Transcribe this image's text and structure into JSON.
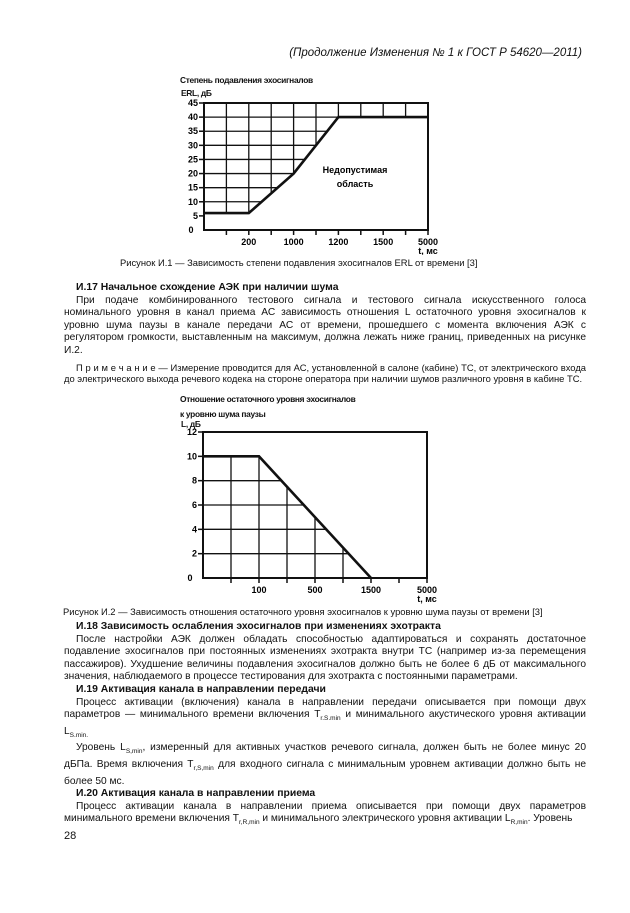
{
  "header": "(Продолжение Изменения № 1 к ГОСТ Р 54620—2011)",
  "chart_data": [
    {
      "type": "line",
      "title": "Степень подавления эхосигналов",
      "ylabel": "ERL, дБ",
      "xlabel": "t, мс",
      "x_ticks": [
        "",
        "",
        "200",
        "",
        "1000",
        "",
        "1200",
        "",
        "1500",
        "",
        "5000"
      ],
      "y_ticks": [
        0,
        5,
        10,
        15,
        20,
        25,
        30,
        35,
        40,
        45
      ],
      "ylim": [
        0,
        45
      ],
      "x_positions": [
        0,
        100,
        200,
        600,
        1000,
        1100,
        1200,
        1350,
        1500,
        3250,
        5000
      ],
      "points": [
        [
          0,
          6
        ],
        [
          200,
          6
        ],
        [
          1000,
          20
        ],
        [
          1200,
          40
        ],
        [
          5000,
          40
        ]
      ],
      "annotation": [
        "Недопустимая",
        "область"
      ],
      "grid": true,
      "zero_label": "0"
    },
    {
      "type": "line",
      "title": "Отношение остаточного уровня эхосигналов",
      "title2": "к уровню шума паузы",
      "ylabel": "L, дБ",
      "xlabel": "t, мс",
      "x_ticks": [
        "",
        "",
        "100",
        "",
        "500",
        "",
        "1500",
        "",
        "5000"
      ],
      "y_ticks": [
        0,
        2,
        4,
        6,
        8,
        10,
        12
      ],
      "ylim": [
        0,
        12
      ],
      "x_positions": [
        0,
        50,
        100,
        300,
        500,
        1000,
        1500,
        3250,
        5000
      ],
      "points": [
        [
          0,
          10
        ],
        [
          100,
          10
        ],
        [
          1500,
          0
        ]
      ],
      "grid": true,
      "zero_label": "0"
    }
  ],
  "caption1": "Рисунок И.1 — Зависимость степени подавления эхосигналов ERL от времени [3]",
  "s17_title": "И.17 Начальное схождение АЭК при наличии шума",
  "s17_text": "При подаче комбинированного тестового сигнала и тестового сигнала искусственного голоса номинального уровня в канал приема АС зависимость отношения L остаточного уровня эхосигналов к уровню шума паузы в канале передачи АС от времени, прошедшего с момента включения АЭК с регулятором громкости, выставленным на максимум, должна лежать ниже границ, приведенных на рисунке И.2.",
  "s17_note": "П р и м е ч а н и е — Измерение проводится для АС, установленной в салоне (кабине) ТС, от электрического входа до электрического выхода речевого кодека на стороне оператора при наличии шумов различного уровня в кабине ТС.",
  "caption2": "Рисунок И.2 — Зависимость отношения остаточного уровня эхосигналов к уровню шума паузы от времени [3]",
  "s18_title": "И.18 Зависимость ослабления эхосигналов при изменениях эхотракта",
  "s18_text": "После настройки АЭК должен обладать способностью адаптироваться и сохранять достаточное подавление эхосигналов при постоянных изменениях эхотракта внутри ТС (например из-за перемещения пассажиров). Ухудшение величины подавления эхосигналов должно быть не более 6 дБ от максимального значения, наблюдаемого в процессе тестирования для эхотракта с постоянными параметрами.",
  "s19_title": "И.19 Активация канала в направлении передачи",
  "s19_p1a": "Процесс активации (включения) канала в направлении передачи описывается при помощи двух параметров — минимального времени включения T",
  "s19_p1_sub1": "r.S.min",
  "s19_p1b": " и минимального акустического уровня активации L",
  "s19_p1_sub2": "S.min.",
  "s19_p2a": "Уровень L",
  "s19_p2_sub1": "S,min",
  "s19_p2b": ", измеренный для активных участков речевого сигнала, должен быть не более минус 20 дБПа. Время включения T",
  "s19_p2_sub2": "r,S,min",
  "s19_p2c": " для входного сигнала с минимальным уровнем активации должно быть не более 50 мс.",
  "s20_title": "И.20 Активация канала в направлении приема",
  "s20_a": "Процесс активации канала в направлении приема описывается при помощи двух параметров минимального времени включения T",
  "s20_sub1": "r,R,min",
  "s20_b": " и минимального электрического уровня активации L",
  "s20_sub2": "R,min",
  "s20_c": ". Уровень",
  "page_number": "28"
}
